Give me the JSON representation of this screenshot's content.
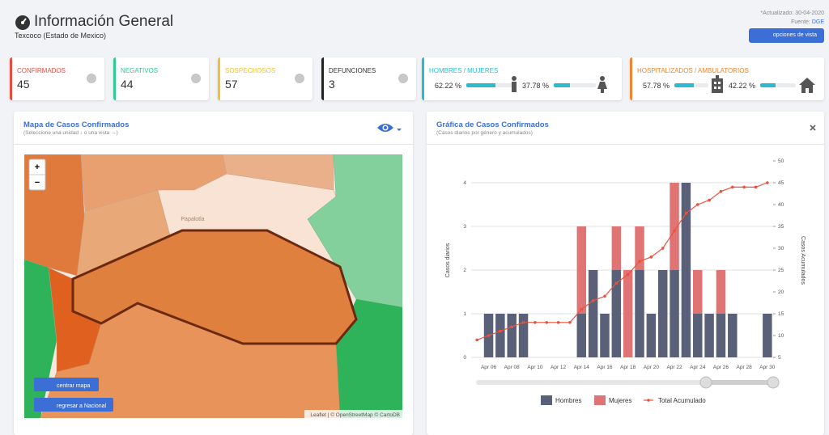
{
  "header": {
    "title": "Información General",
    "subtitle": "Texcoco (Estado de Mexico)",
    "updated": "*Actualizado: 30-04-2020",
    "source_label": "Fuente:",
    "source": "DGE",
    "button": "opciones de vista"
  },
  "cards": [
    {
      "label": "CONFIRMADOS",
      "value": 45,
      "color": "#e74c3c"
    },
    {
      "label": "NEGATIVOS",
      "value": 44,
      "color": "#2ecc8f"
    },
    {
      "label": "SOSPECHOSOS",
      "value": 57,
      "color": "#f1c232"
    },
    {
      "label": "DEFUNCIONES",
      "value": 3,
      "color": "#222222"
    }
  ],
  "gender": {
    "title": "HOMBRES / MUJERES",
    "color": "#2bbbd1",
    "items": [
      {
        "value": 62.22,
        "label": "62.22 %"
      },
      {
        "value": 37.78,
        "label": "37.78 %"
      }
    ]
  },
  "hospital": {
    "title": "HOSPITALIZADOS / AMBULATORIOS",
    "color": "#f0852d",
    "items": [
      {
        "value": 57.78,
        "label": "57.78 %"
      },
      {
        "value": 42.22,
        "label": "42.22 %"
      }
    ]
  },
  "map": {
    "title": "Mapa de Casos Confirmados",
    "subtitle": "(Seleccione una unidad ↓ o una vista →)",
    "zoom_in": "+",
    "zoom_out": "−",
    "buttons": [
      "centrar mapa",
      "regresar a Nacional"
    ],
    "attribution": "Leaflet | © OpenStreetMap © CartoDB",
    "places": [
      "Papalotla"
    ]
  },
  "chart_data": {
    "type": "bar",
    "stacked": true,
    "title": "Gráfica de Casos Confirmados",
    "subtitle": "(Casos diarios por género y acumulados)",
    "ylabel": "Casos diarios",
    "y2label": "Casos Acumulados",
    "categories": [
      null,
      "Apr 06",
      null,
      "Apr 08",
      null,
      "Apr 10",
      null,
      "Apr 12",
      null,
      "Apr 14",
      null,
      "Apr 16",
      null,
      "Apr 18",
      null,
      "Apr 20",
      null,
      "Apr 22",
      null,
      "Apr 24",
      null,
      "Apr 26",
      null,
      "Apr 28",
      null,
      "Apr 30"
    ],
    "series": [
      {
        "name": "Hombres",
        "color": "#5a6078",
        "values": [
          0,
          1,
          1,
          1,
          1,
          0,
          0,
          0,
          0,
          1,
          2,
          1,
          2,
          0,
          2,
          1,
          2,
          2,
          4,
          1,
          1,
          1,
          1,
          0,
          0,
          1
        ]
      },
      {
        "name": "Mujeres",
        "color": "#e07474",
        "values": [
          0,
          0,
          0,
          0,
          0,
          0,
          0,
          0,
          0,
          2,
          0,
          0,
          1,
          2,
          1,
          0,
          0,
          2,
          0,
          1,
          0,
          1,
          0,
          0,
          0,
          0
        ]
      },
      {
        "name": "Total Acumulado",
        "type": "line",
        "axis": "y2",
        "color": "#e8533f",
        "values": [
          9,
          10,
          11,
          12,
          13,
          13,
          13,
          13,
          13,
          16,
          18,
          19,
          22,
          24,
          27,
          28,
          30,
          34,
          38,
          40,
          41,
          43,
          44,
          44,
          44,
          45
        ]
      }
    ],
    "ylim": [
      0,
      4.5
    ],
    "yticks": [
      0,
      1,
      2,
      3,
      4
    ],
    "y2lim": [
      5,
      50
    ],
    "y2ticks": [
      5,
      10,
      15,
      20,
      25,
      30,
      35,
      40,
      45,
      50
    ],
    "grid": true,
    "legend": "bottom"
  }
}
